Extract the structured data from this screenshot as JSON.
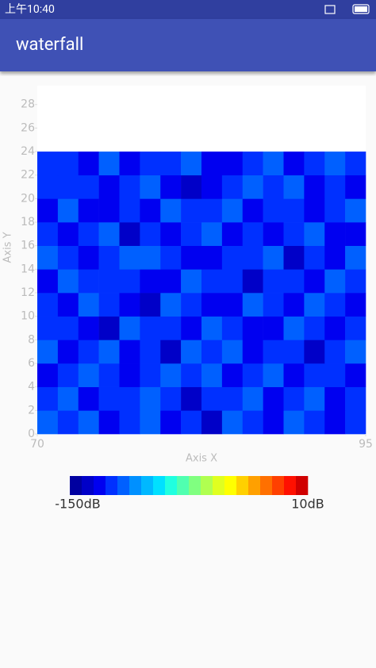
{
  "status_bar": {
    "time": "上午10:40"
  },
  "app_bar": {
    "title": "waterfall"
  },
  "chart_data": {
    "type": "heatmap",
    "x_label": "Axis X",
    "y_label": "Axis Y",
    "xlim": [
      70,
      95
    ],
    "xticks": [
      70,
      95
    ],
    "ylim": [
      0,
      29.6
    ],
    "yticks": [
      0,
      2,
      4,
      6,
      8,
      10,
      12,
      14,
      16,
      18,
      20,
      22,
      24,
      26,
      28
    ],
    "x_edges": [
      70,
      71.5625,
      73.125,
      74.6875,
      76.25,
      77.8125,
      79.375,
      80.9375,
      82.5,
      84.0625,
      85.625,
      87.1875,
      88.75,
      90.3125,
      91.875,
      93.4375,
      95
    ],
    "y_edges": [
      0,
      2,
      4,
      6,
      8,
      10,
      12,
      14,
      16,
      18,
      20,
      22,
      24
    ],
    "values": [
      [
        -118,
        -125,
        -114,
        -130,
        -121,
        -116,
        -128,
        -119,
        -135,
        -117,
        -122,
        -127,
        -115,
        -124,
        -132,
        -120
      ],
      [
        -123,
        -117,
        -131,
        -120,
        -126,
        -113,
        -119,
        -136,
        -121,
        -125,
        -118,
        -129,
        -122,
        -116,
        -127,
        -124
      ],
      [
        -129,
        -121,
        -116,
        -124,
        -133,
        -120,
        -115,
        -126,
        -118,
        -131,
        -123,
        -114,
        -128,
        -121,
        -119,
        -134
      ],
      [
        -115,
        -132,
        -122,
        -118,
        -127,
        -124,
        -137,
        -117,
        -123,
        -116,
        -130,
        -121,
        -119,
        -135,
        -122,
        -117
      ],
      [
        -126,
        -119,
        -128,
        -135,
        -114,
        -122,
        -125,
        -131,
        -116,
        -120,
        -127,
        -133,
        -118,
        -123,
        -129,
        -121
      ],
      [
        -120,
        -127,
        -117,
        -123,
        -130,
        -138,
        -118,
        -122,
        -128,
        -134,
        -115,
        -124,
        -131,
        -117,
        -125,
        -130
      ],
      [
        -131,
        -116,
        -124,
        -119,
        -122,
        -127,
        -133,
        -114,
        -125,
        -119,
        -136,
        -120,
        -126,
        -129,
        -118,
        -123
      ],
      [
        -117,
        -123,
        -134,
        -126,
        -118,
        -115,
        -121,
        -129,
        -132,
        -124,
        -120,
        -117,
        -135,
        -122,
        -128,
        -116
      ],
      [
        -124,
        -130,
        -119,
        -115,
        -136,
        -123,
        -128,
        -120,
        -117,
        -129,
        -126,
        -131,
        -121,
        -114,
        -133,
        -127
      ],
      [
        -132,
        -118,
        -127,
        -129,
        -120,
        -131,
        -116,
        -125,
        -122,
        -115,
        -134,
        -119,
        -124,
        -130,
        -120,
        -118
      ],
      [
        -119,
        -126,
        -121,
        -133,
        -124,
        -117,
        -130,
        -138,
        -127,
        -121,
        -118,
        -125,
        -116,
        -128,
        -123,
        -131
      ],
      [
        -125,
        -120,
        -129,
        -117,
        -131,
        -126,
        -122,
        -118,
        -134,
        -128,
        -123,
        -116,
        -130,
        -120,
        -117,
        -126
      ]
    ],
    "colorbar": {
      "colors": [
        "#0000a0",
        "#0000c8",
        "#0000f0",
        "#0030ff",
        "#0060ff",
        "#0090ff",
        "#00b8ff",
        "#00e0ff",
        "#20ffe0",
        "#50ffb0",
        "#80ff80",
        "#b0ff50",
        "#e0ff20",
        "#ffff00",
        "#ffd000",
        "#ffa000",
        "#ff7000",
        "#ff4000",
        "#ff1000",
        "#d00000"
      ],
      "ticks": [
        {
          "value": -150,
          "label": "-150dB"
        },
        {
          "value": 10,
          "label": "10dB"
        }
      ]
    }
  }
}
